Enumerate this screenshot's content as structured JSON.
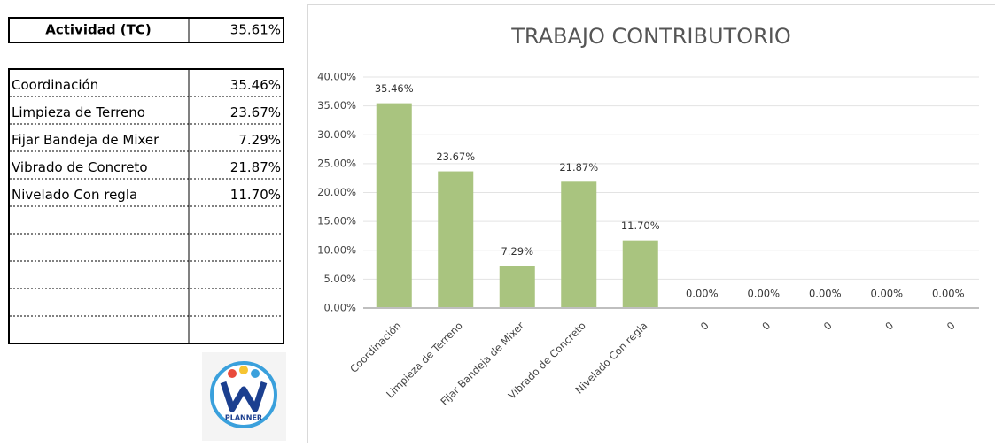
{
  "summary": {
    "label": "Actividad (TC)",
    "value": "35.61%"
  },
  "table": {
    "rows": [
      [
        "Coordinación",
        "35.46%"
      ],
      [
        "Limpieza de Terreno",
        "23.67%"
      ],
      [
        "Fijar Bandeja de Mixer",
        "7.29%"
      ],
      [
        "Vibrado de Concreto",
        "21.87%"
      ],
      [
        "Nivelado Con regla",
        "11.70%"
      ]
    ]
  },
  "logo": {
    "text": "PLANNER"
  },
  "chart_data": {
    "type": "bar",
    "title": "TRABAJO CONTRIBUTORIO",
    "categories": [
      "Coordinación",
      "Limpieza de Terreno",
      "Fijar Bandeja de Mixer",
      "Vibrado de Concreto",
      "Nivelado Con regla",
      "0",
      "0",
      "0",
      "0",
      "0"
    ],
    "values": [
      35.46,
      23.67,
      7.29,
      21.87,
      11.7,
      0,
      0,
      0,
      0,
      0
    ],
    "value_labels": [
      "35.46%",
      "23.67%",
      "7.29%",
      "21.87%",
      "11.70%",
      "0.00%",
      "0.00%",
      "0.00%",
      "0.00%",
      "0.00%"
    ],
    "color": "#a9c47f",
    "ylim": [
      0,
      40
    ],
    "yticks": [
      {
        "value": 0,
        "label": "0.00%"
      },
      {
        "value": 5,
        "label": "5.00%"
      },
      {
        "value": 10,
        "label": "10.00%"
      },
      {
        "value": 15,
        "label": "15.00%"
      },
      {
        "value": 20,
        "label": "20.00%"
      },
      {
        "value": 25,
        "label": "25.00%"
      },
      {
        "value": 30,
        "label": "30.00%"
      },
      {
        "value": 35,
        "label": "35.00%"
      },
      {
        "value": 40,
        "label": "40.00%"
      }
    ],
    "grid": true
  }
}
